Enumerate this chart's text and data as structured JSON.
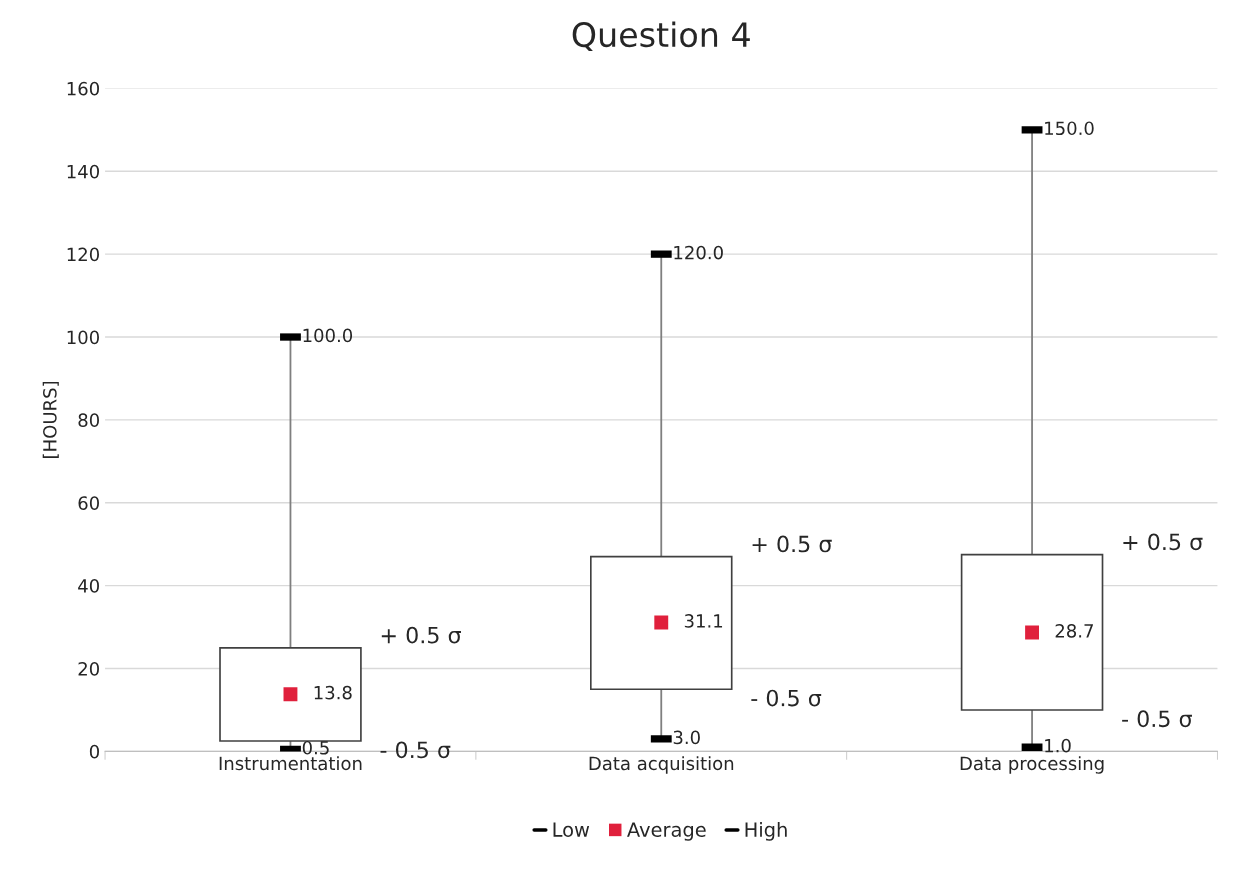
{
  "chart_data": {
    "type": "candlestick",
    "title": "Question 4",
    "ylabel": "[HOURS]",
    "categories": [
      "Instrumentation",
      "Data acquisition",
      "Data processing"
    ],
    "ohlc": [
      [
        2.5,
        100,
        0.5,
        25
      ],
      [
        15,
        120,
        3,
        47
      ],
      [
        10,
        150,
        1,
        47.5
      ]
    ],
    "series": [
      {
        "name": "Low",
        "type": "scatter",
        "color": "#000000",
        "values": [
          0.5,
          3.0,
          1.0
        ],
        "value_labels": [
          "0.5",
          "3.0",
          "1.0"
        ]
      },
      {
        "name": "Average",
        "type": "scatter",
        "marker": "square",
        "color": "#e0203c",
        "values": [
          13.8,
          31.1,
          28.7
        ],
        "value_labels": [
          "13.8",
          "31.1",
          "28.7"
        ]
      },
      {
        "name": "High",
        "type": "scatter",
        "color": "#000000",
        "values": [
          100,
          120,
          150
        ],
        "value_labels": [
          "100.0",
          "120.0",
          "150.0"
        ]
      }
    ],
    "annotations": [
      "+ 0.5 σ",
      "- 0.5 σ",
      "+ 0.5 σ",
      "- 0.5 σ",
      "+ 0.5 σ",
      "- 0.5 σ"
    ],
    "ylim": [
      0,
      160
    ],
    "yticks": [
      0,
      20,
      40,
      60,
      80,
      100,
      120,
      140,
      160
    ],
    "grid": "y",
    "legend": "bottom"
  }
}
